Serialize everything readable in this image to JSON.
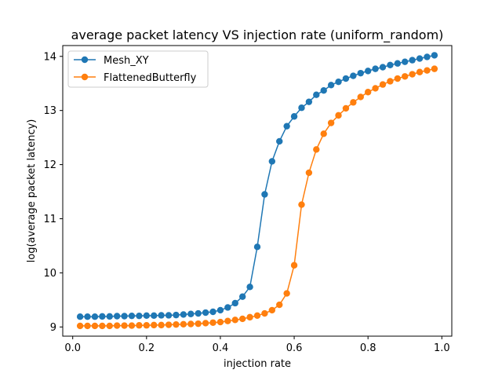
{
  "chart_data": {
    "type": "line",
    "title": "average packet latency VS injection rate (uniform_random)",
    "xlabel": "injection rate",
    "ylabel": "log(average packet latency)",
    "xlim": [
      -0.027,
      1.027
    ],
    "ylim": [
      8.83,
      14.2
    ],
    "xticks": [
      0.0,
      0.2,
      0.4,
      0.6,
      0.8,
      1.0
    ],
    "xtick_labels": [
      "0.0",
      "0.2",
      "0.4",
      "0.6",
      "0.8",
      "1.0"
    ],
    "yticks": [
      9,
      10,
      11,
      12,
      13,
      14
    ],
    "ytick_labels": [
      "9",
      "10",
      "11",
      "12",
      "13",
      "14"
    ],
    "grid": false,
    "legend_position": "top-left",
    "x": [
      0.02,
      0.04,
      0.06,
      0.08,
      0.1,
      0.12,
      0.14,
      0.16,
      0.18,
      0.2,
      0.22,
      0.24,
      0.26,
      0.28,
      0.3,
      0.32,
      0.34,
      0.36,
      0.38,
      0.4,
      0.42,
      0.44,
      0.46,
      0.48,
      0.5,
      0.52,
      0.54,
      0.56,
      0.58,
      0.6,
      0.62,
      0.64,
      0.66,
      0.68,
      0.7,
      0.72,
      0.74,
      0.76,
      0.78,
      0.8,
      0.82,
      0.84,
      0.86,
      0.88,
      0.9,
      0.92,
      0.94,
      0.96,
      0.98
    ],
    "series": [
      {
        "name": "Mesh_XY",
        "color": "#1f77b4",
        "values": [
          9.19,
          9.19,
          9.19,
          9.195,
          9.195,
          9.2,
          9.2,
          9.205,
          9.205,
          9.21,
          9.21,
          9.215,
          9.215,
          9.22,
          9.23,
          9.24,
          9.25,
          9.265,
          9.28,
          9.31,
          9.36,
          9.44,
          9.56,
          9.74,
          10.48,
          11.45,
          12.06,
          12.43,
          12.71,
          12.89,
          13.05,
          13.16,
          13.29,
          13.37,
          13.47,
          13.53,
          13.59,
          13.64,
          13.69,
          13.73,
          13.77,
          13.8,
          13.84,
          13.87,
          13.9,
          13.93,
          13.96,
          13.99,
          14.02
        ]
      },
      {
        "name": "FlattenedButterfly",
        "color": "#ff7f0e",
        "values": [
          9.02,
          9.02,
          9.02,
          9.02,
          9.02,
          9.025,
          9.025,
          9.025,
          9.03,
          9.03,
          9.035,
          9.035,
          9.04,
          9.045,
          9.05,
          9.055,
          9.06,
          9.07,
          9.08,
          9.09,
          9.11,
          9.13,
          9.15,
          9.18,
          9.21,
          9.25,
          9.31,
          9.41,
          9.62,
          10.14,
          11.26,
          11.85,
          12.28,
          12.57,
          12.77,
          12.91,
          13.04,
          13.15,
          13.25,
          13.34,
          13.41,
          13.48,
          13.54,
          13.59,
          13.63,
          13.67,
          13.71,
          13.74,
          13.77
        ]
      }
    ]
  }
}
